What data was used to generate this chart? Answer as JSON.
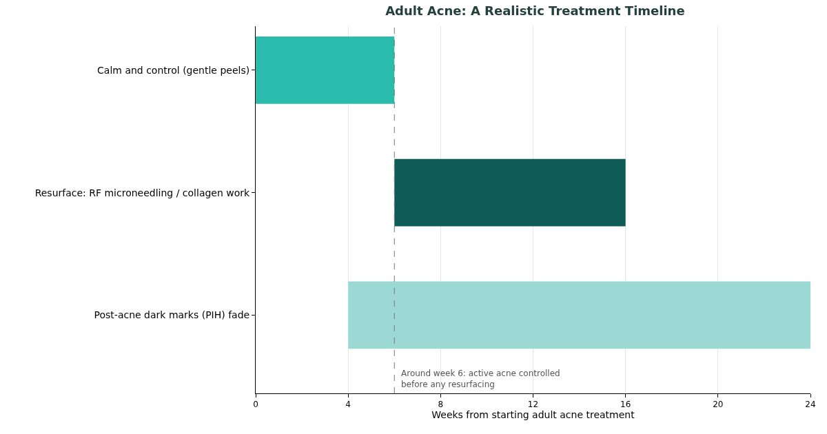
{
  "chart_data": {
    "type": "bar",
    "orientation": "horizontal",
    "title": "Adult Acne: A Realistic Treatment Timeline",
    "xlabel": "Weeks from starting adult acne treatment",
    "categories": [
      "Calm and control (gentle peels)",
      "Resurface: RF microneedling / collagen work",
      "Post-acne dark marks (PIH) fade"
    ],
    "values": [
      6,
      10,
      20
    ],
    "base": [
      0,
      6,
      4
    ],
    "colors": [
      "#2bbbad",
      "#0f5c56",
      "#9dd9d4"
    ],
    "xlim": [
      0,
      24
    ],
    "xticks": [
      0,
      4,
      8,
      12,
      16,
      20,
      24
    ],
    "grid": "x",
    "ref_lines": [
      {
        "axis": "x",
        "value": 6,
        "label": "Around week 6: active acne controlled\nbefore any resurfacing",
        "color": "#777777",
        "line_style": "dashed"
      }
    ]
  }
}
